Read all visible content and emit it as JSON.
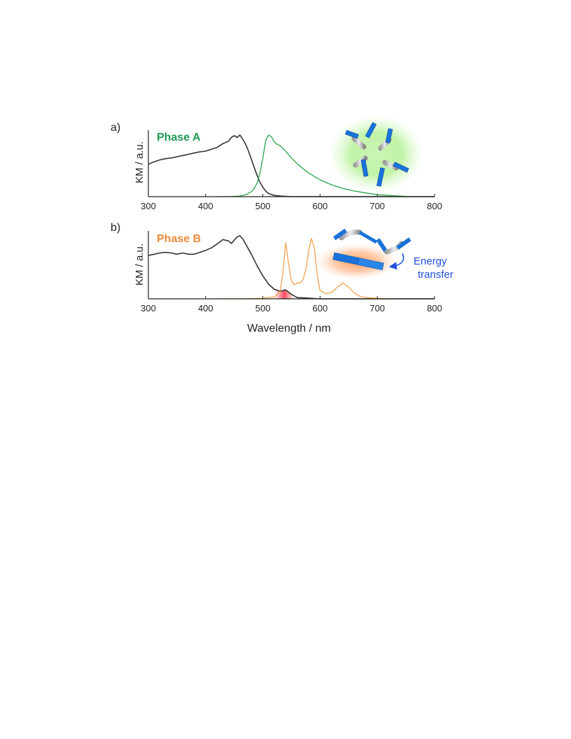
{
  "colors": {
    "absorption": "#333333",
    "phase_a": "#2ca34a",
    "phase_b": "#f4a14a",
    "phase_a_label": "#1f9a56",
    "phase_b_label": "#ee8a3a",
    "energy_transfer": "#1f4fe0",
    "blade": "#1a73d9",
    "overlap": "#ff3b4f"
  },
  "chart_data": [
    {
      "type": "line",
      "panel_label": "a)",
      "title": "Phase A",
      "xlabel": "",
      "ylabel": "KM / a.u.",
      "xlim": [
        300,
        800
      ],
      "ylim": [
        0,
        1
      ],
      "x_ticks": [
        300,
        400,
        500,
        600,
        700,
        800
      ],
      "grid": false,
      "legend": "none",
      "inset": "green-glow-molecule-icon",
      "series": [
        {
          "role": "absorption",
          "color": "#333333",
          "x": [
            300,
            310,
            320,
            330,
            340,
            350,
            360,
            370,
            380,
            390,
            400,
            410,
            420,
            430,
            440,
            445,
            450,
            455,
            460,
            465,
            470,
            475,
            480,
            485,
            490,
            495,
            500,
            505,
            510,
            520,
            530,
            540,
            550,
            560,
            580,
            600,
            650,
            700,
            750,
            800
          ],
          "y": [
            0.52,
            0.56,
            0.59,
            0.61,
            0.62,
            0.64,
            0.66,
            0.68,
            0.7,
            0.72,
            0.73,
            0.76,
            0.79,
            0.85,
            0.89,
            0.95,
            0.98,
            0.95,
            0.99,
            0.92,
            0.84,
            0.73,
            0.6,
            0.47,
            0.34,
            0.23,
            0.15,
            0.09,
            0.05,
            0.02,
            0.01,
            0.005,
            0,
            0,
            0,
            0,
            0,
            0,
            0,
            0
          ]
        },
        {
          "role": "emission",
          "color": "#2ca34a",
          "x": [
            420,
            440,
            460,
            470,
            480,
            485,
            490,
            495,
            500,
            505,
            510,
            515,
            520,
            525,
            530,
            540,
            550,
            560,
            570,
            580,
            600,
            620,
            640,
            660,
            680,
            700,
            720,
            740,
            760
          ],
          "y": [
            0,
            0,
            0.01,
            0.03,
            0.08,
            0.13,
            0.22,
            0.38,
            0.62,
            0.9,
            0.99,
            0.96,
            0.88,
            0.84,
            0.82,
            0.73,
            0.62,
            0.53,
            0.45,
            0.38,
            0.27,
            0.19,
            0.13,
            0.09,
            0.06,
            0.03,
            0.02,
            0.01,
            0
          ]
        }
      ]
    },
    {
      "type": "line",
      "panel_label": "b)",
      "title": "Phase B",
      "xlabel": "Wavelength / nm",
      "ylabel": "KM / a.u.",
      "xlim": [
        300,
        800
      ],
      "ylim": [
        0,
        1
      ],
      "x_ticks": [
        300,
        400,
        500,
        600,
        700,
        800
      ],
      "grid": false,
      "legend": "none",
      "inset": "energy-transfer-molecule-icon",
      "annotation": "Energy transfer",
      "annotation_lines": [
        "Energy",
        "transfer"
      ],
      "overlap_region": [
        520,
        555
      ],
      "series": [
        {
          "role": "absorption",
          "color": "#333333",
          "x": [
            300,
            310,
            320,
            330,
            340,
            350,
            360,
            370,
            380,
            390,
            400,
            410,
            420,
            430,
            440,
            445,
            450,
            455,
            460,
            465,
            470,
            480,
            490,
            500,
            510,
            520,
            530,
            540,
            550,
            560,
            580,
            600,
            700,
            800
          ],
          "y": [
            0.68,
            0.7,
            0.72,
            0.73,
            0.72,
            0.7,
            0.72,
            0.7,
            0.7,
            0.73,
            0.76,
            0.8,
            0.86,
            0.93,
            0.91,
            0.87,
            0.92,
            0.97,
            0.99,
            0.94,
            0.86,
            0.7,
            0.52,
            0.36,
            0.23,
            0.15,
            0.12,
            0.14,
            0.07,
            0.02,
            0.01,
            0,
            0,
            0
          ]
        },
        {
          "role": "emission",
          "color": "#f4a14a",
          "x": [
            420,
            460,
            500,
            520,
            530,
            535,
            540,
            545,
            550,
            555,
            560,
            565,
            570,
            575,
            580,
            585,
            590,
            595,
            600,
            610,
            620,
            630,
            640,
            650,
            660,
            670,
            680,
            700,
            720,
            740
          ],
          "y": [
            0,
            0,
            0.01,
            0.03,
            0.1,
            0.4,
            0.88,
            0.55,
            0.28,
            0.22,
            0.25,
            0.25,
            0.3,
            0.45,
            0.75,
            0.95,
            0.8,
            0.38,
            0.13,
            0.08,
            0.1,
            0.18,
            0.25,
            0.18,
            0.09,
            0.04,
            0.02,
            0.01,
            0,
            0
          ]
        }
      ]
    }
  ]
}
